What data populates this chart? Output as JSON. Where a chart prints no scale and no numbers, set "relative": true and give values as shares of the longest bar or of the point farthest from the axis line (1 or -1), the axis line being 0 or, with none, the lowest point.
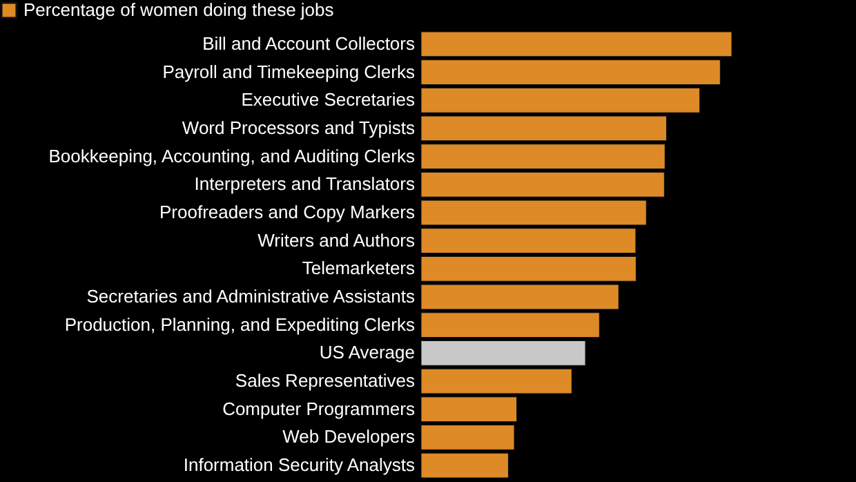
{
  "chart_data": {
    "type": "bar",
    "orientation": "horizontal",
    "relative": true,
    "legend": "top left",
    "categories": [
      "Bill and Account Collectors",
      "Payroll and Timekeeping Clerks",
      "Executive Secretaries",
      "Word Processors and Typists",
      "Bookkeeping, Accounting, and Auditing Clerks",
      "Interpreters and Translators",
      "Proofreaders and Copy Markers",
      "Writers and Authors",
      "Telemarketers",
      "Secretaries and Administrative Assistants",
      "Production, Planning, and Expediting Clerks",
      "US Average",
      "Sales Representatives",
      "Computer Programmers",
      "Web Developers",
      "Information Security Analysts"
    ],
    "series": [
      {
        "name": "Percentage of women doing these jobs",
        "color": "#dd8a27",
        "values": [
          1,
          0.963,
          0.897,
          0.79,
          0.785,
          0.783,
          0.725,
          0.691,
          0.692,
          0.636,
          0.574,
          null,
          0.485,
          0.308,
          0.3,
          0.281
        ]
      },
      {
        "color": "#c8c8c8",
        "values": [
          null,
          null,
          null,
          null,
          null,
          null,
          null,
          null,
          null,
          null,
          null,
          0.529,
          null,
          null,
          null,
          null
        ]
      }
    ]
  }
}
